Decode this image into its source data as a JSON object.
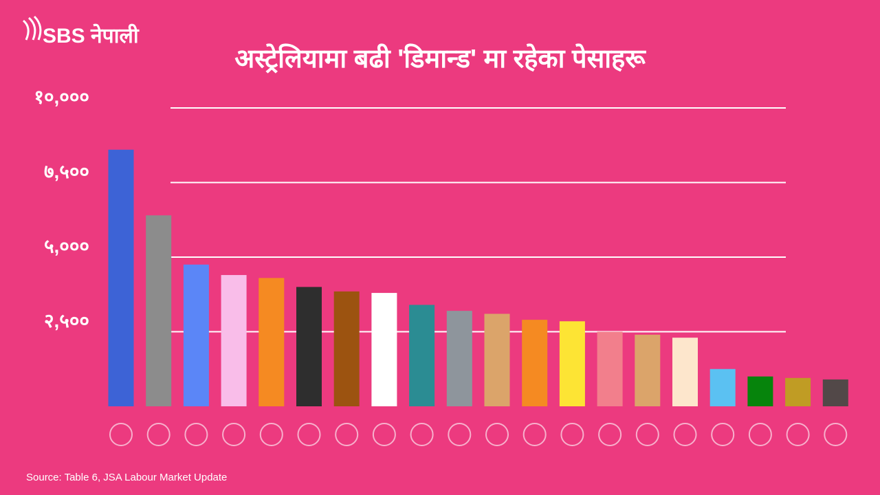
{
  "logo": "SBS नेपाली",
  "chart_data": {
    "type": "bar",
    "title": "अस्ट्रेलियामा बढी 'डिमान्ड' मा रहेका पेसाहरू",
    "source": "Source: Table 6, JSA Labour Market Update",
    "categories": [
      null,
      null,
      null,
      null,
      null,
      null,
      null,
      null,
      null,
      null,
      null,
      null,
      null,
      null,
      null,
      null,
      null,
      null,
      null,
      null
    ],
    "values": [
      8600,
      6400,
      4750,
      4400,
      4300,
      4000,
      3850,
      3800,
      3400,
      3200,
      3100,
      2900,
      2850,
      2500,
      2400,
      2300,
      1250,
      1000,
      950,
      900
    ],
    "colors": [
      "#3d63d6",
      "#8c8c8c",
      "#5b86f7",
      "#f9bde9",
      "#f58a22",
      "#2e2e2e",
      "#9c5310",
      "#ffffff",
      "#2b8c93",
      "#8e959c",
      "#dba46a",
      "#f58a22",
      "#fde434",
      "#f27f8c",
      "#dba46a",
      "#fde6cc",
      "#5bc1f2",
      "#06840c",
      "#c09c24",
      "#524848"
    ],
    "ylim": [
      0,
      10000
    ],
    "yticks": [
      {
        "value": 2500,
        "label": "२,५००"
      },
      {
        "value": 5000,
        "label": "५,०००"
      },
      {
        "value": 7500,
        "label": "७,५००"
      },
      {
        "value": 10000,
        "label": "१०,०००"
      }
    ],
    "grid": true
  }
}
